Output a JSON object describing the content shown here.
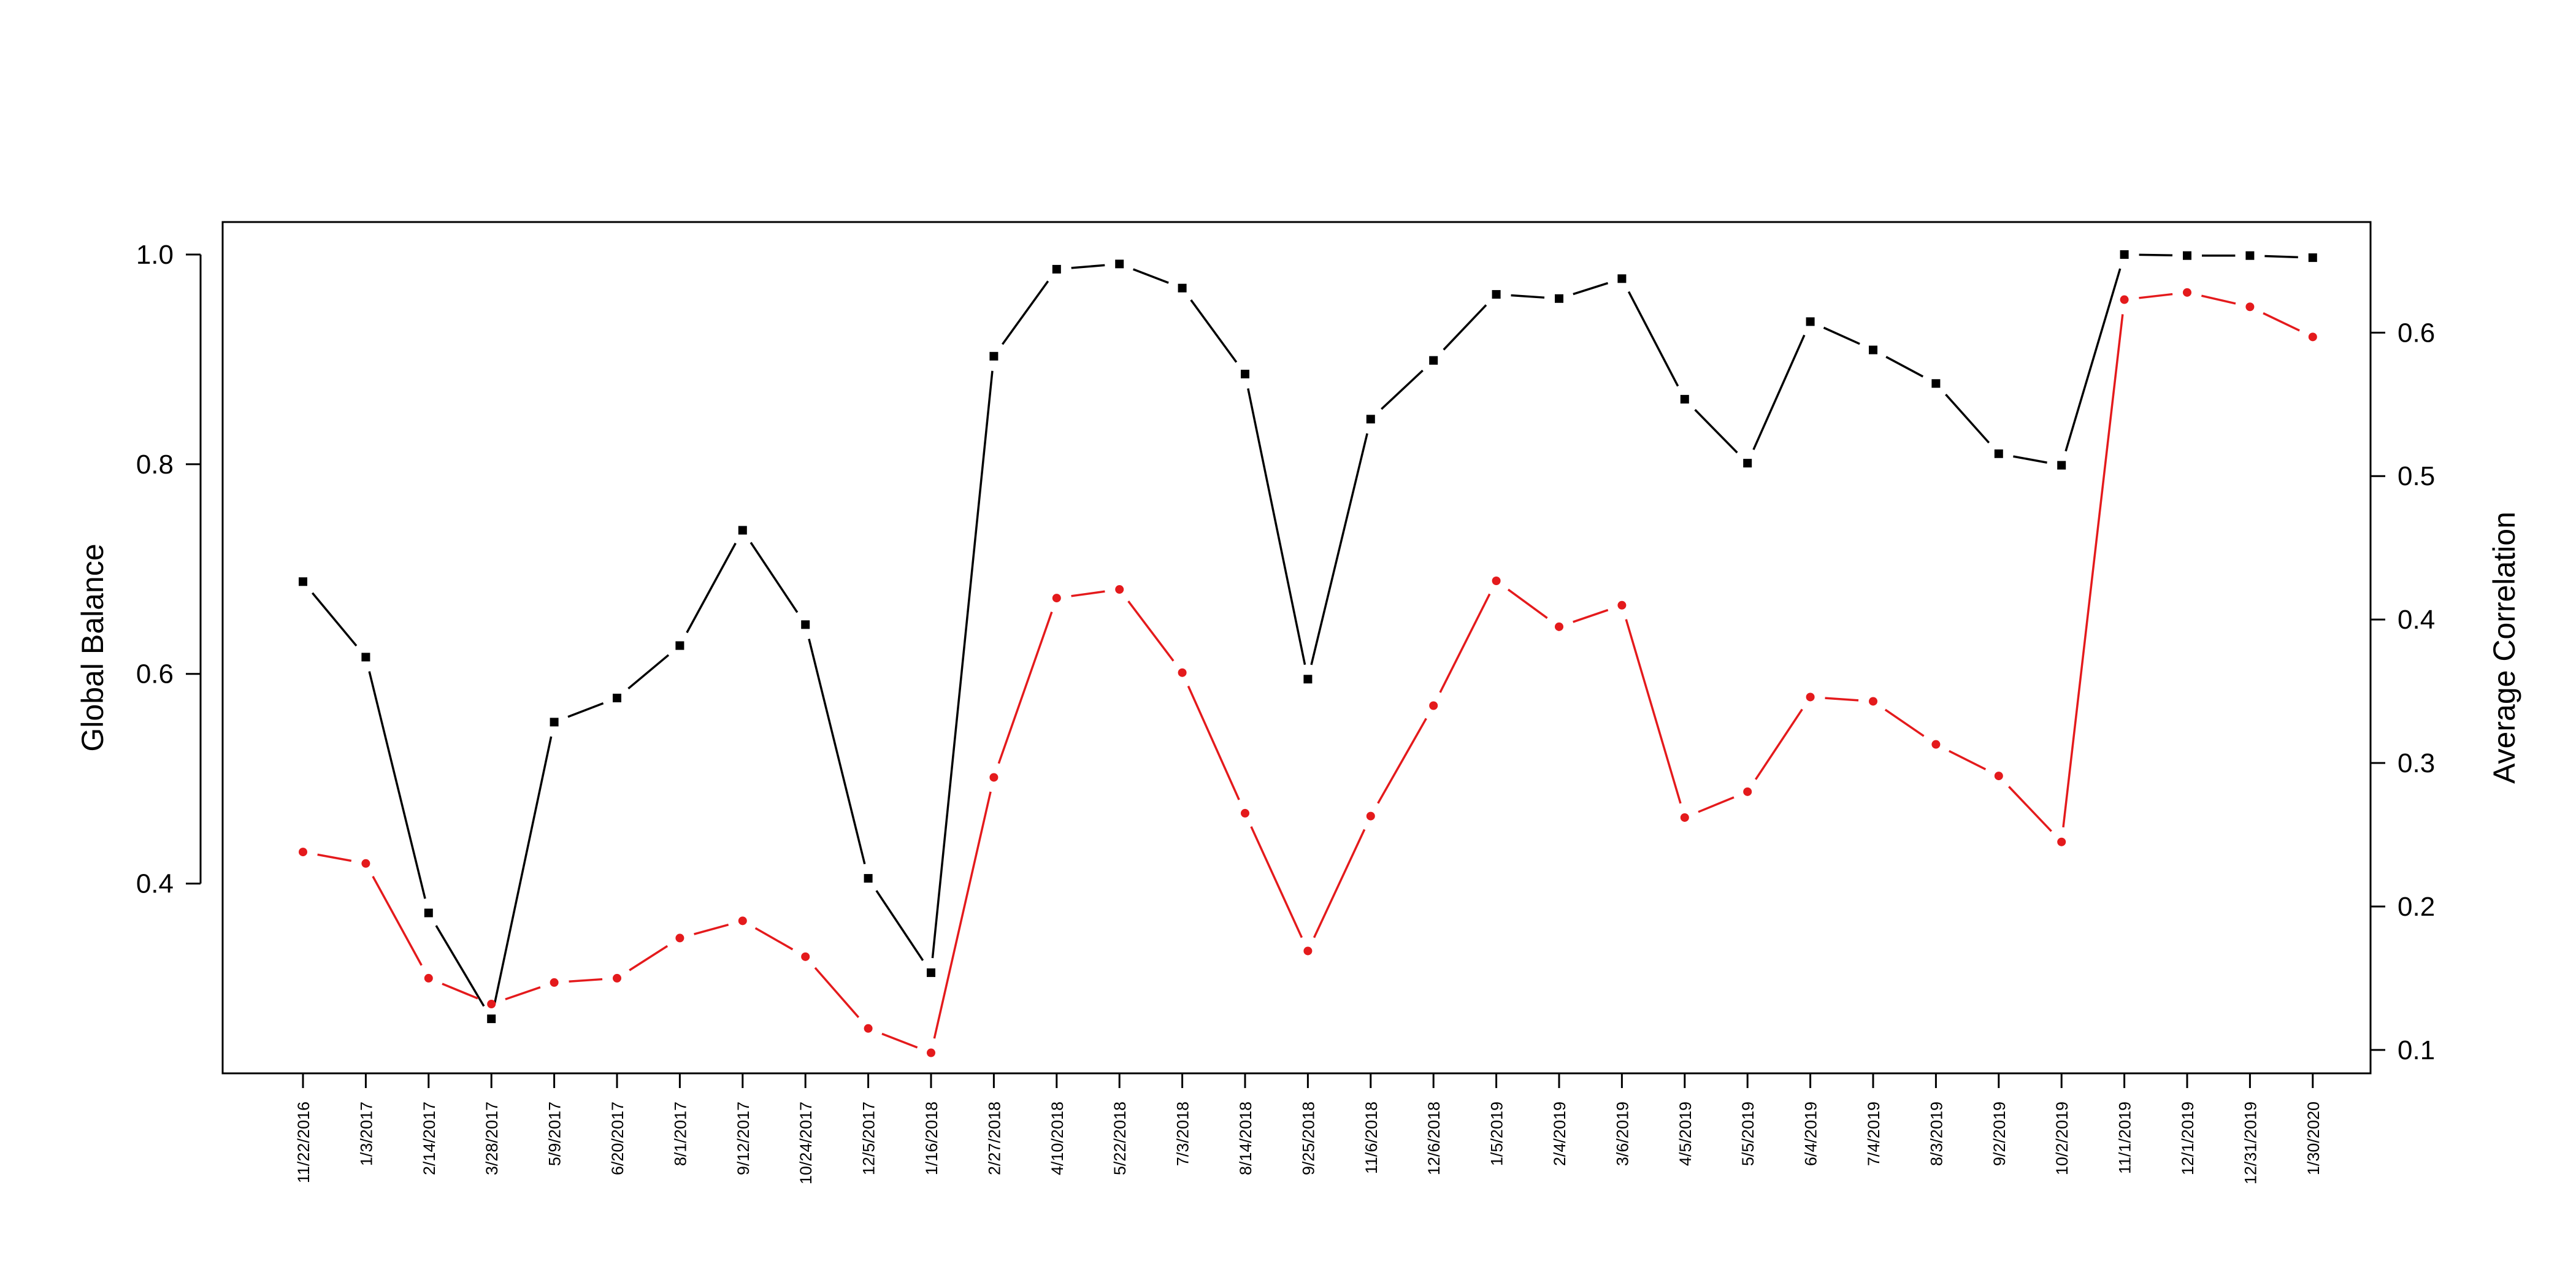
{
  "chart_data": {
    "type": "line",
    "title": "",
    "categories": [
      "11/22/2016",
      "1/3/2017",
      "2/14/2017",
      "3/28/2017",
      "5/9/2017",
      "6/20/2017",
      "8/1/2017",
      "9/12/2017",
      "10/24/2017",
      "12/5/2017",
      "1/16/2018",
      "2/27/2018",
      "4/10/2018",
      "5/22/2018",
      "7/3/2018",
      "8/14/2018",
      "9/25/2018",
      "11/6/2018",
      "12/6/2018",
      "1/5/2019",
      "2/4/2019",
      "3/6/2019",
      "4/5/2019",
      "5/5/2019",
      "6/4/2019",
      "7/4/2019",
      "8/3/2019",
      "9/2/2019",
      "10/2/2019",
      "11/1/2019",
      "12/1/2019",
      "12/31/2019",
      "1/30/2020"
    ],
    "ylabel_left": "Global Balance",
    "ylabel_right": "Average Correlation",
    "ylim_left": [
      0.219,
      1.031
    ],
    "ylim_right": [
      0.0837,
      0.6771
    ],
    "yticks_left": [
      "0.4",
      "0.6",
      "0.8",
      "1.0"
    ],
    "yticks_right": [
      "0.1",
      "0.2",
      "0.3",
      "0.4",
      "0.5",
      "0.6"
    ],
    "grid": false,
    "series": [
      {
        "axis": "left",
        "color": "#000000",
        "marker": "square",
        "values": [
          0.688,
          0.616,
          0.372,
          0.271,
          0.554,
          0.577,
          0.627,
          0.737,
          0.647,
          0.405,
          0.315,
          0.903,
          0.986,
          0.991,
          0.968,
          0.886,
          0.595,
          0.843,
          0.899,
          0.962,
          0.958,
          0.977,
          0.862,
          0.801,
          0.936,
          0.909,
          0.877,
          0.81,
          0.799,
          1.0,
          0.999,
          0.999,
          0.997
        ]
      },
      {
        "axis": "right",
        "color": "#e41a1c",
        "marker": "circle",
        "values": [
          0.238,
          0.23,
          0.15,
          0.132,
          0.147,
          0.15,
          0.178,
          0.19,
          0.165,
          0.115,
          0.098,
          0.29,
          0.415,
          0.421,
          0.363,
          0.265,
          0.169,
          0.263,
          0.34,
          0.427,
          0.395,
          0.41,
          0.262,
          0.28,
          0.346,
          0.343,
          0.313,
          0.291,
          0.245,
          0.623,
          0.628,
          0.618,
          0.597
        ]
      }
    ]
  }
}
